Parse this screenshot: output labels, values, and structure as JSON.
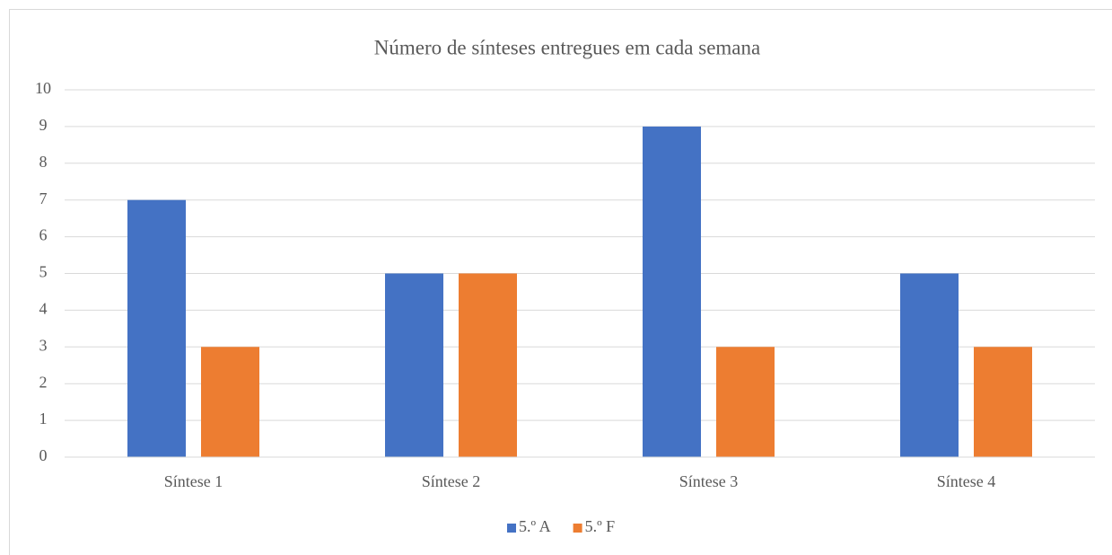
{
  "chart_data": {
    "type": "bar",
    "title": "Número de sínteses entregues em cada semana",
    "categories": [
      "Síntese 1",
      "Síntese 2",
      "Síntese 3",
      "Síntese 4"
    ],
    "series": [
      {
        "name": "5.º A",
        "color": "#4472c4",
        "values": [
          7,
          5,
          9,
          5
        ]
      },
      {
        "name": "5.º F",
        "color": "#ed7d31",
        "values": [
          3,
          5,
          3,
          3
        ]
      }
    ],
    "ylim": [
      0,
      10
    ],
    "yticks": [
      0,
      1,
      2,
      3,
      4,
      5,
      6,
      7,
      8,
      9,
      10
    ],
    "grid": true,
    "legend": "bottom"
  }
}
